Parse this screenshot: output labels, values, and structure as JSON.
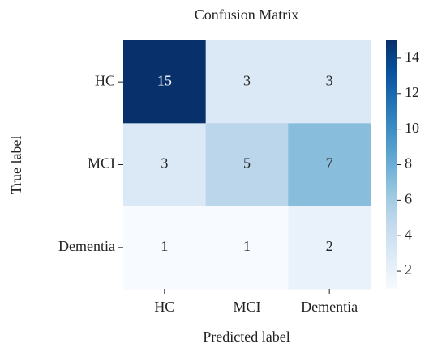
{
  "chart_data": {
    "type": "heatmap",
    "title": "Confusion Matrix",
    "x_label": "Predicted label",
    "y_label": "True label",
    "x_categories": [
      "HC",
      "MCI",
      "Dementia"
    ],
    "y_categories": [
      "HC",
      "MCI",
      "Dementia"
    ],
    "values": [
      [
        15,
        3,
        3
      ],
      [
        3,
        5,
        7
      ],
      [
        1,
        1,
        2
      ]
    ],
    "colormap": "Blues",
    "colorbar_lim": [
      1,
      15
    ],
    "colorbar_ticks": [
      2,
      4,
      6,
      8,
      10,
      12,
      14
    ]
  }
}
